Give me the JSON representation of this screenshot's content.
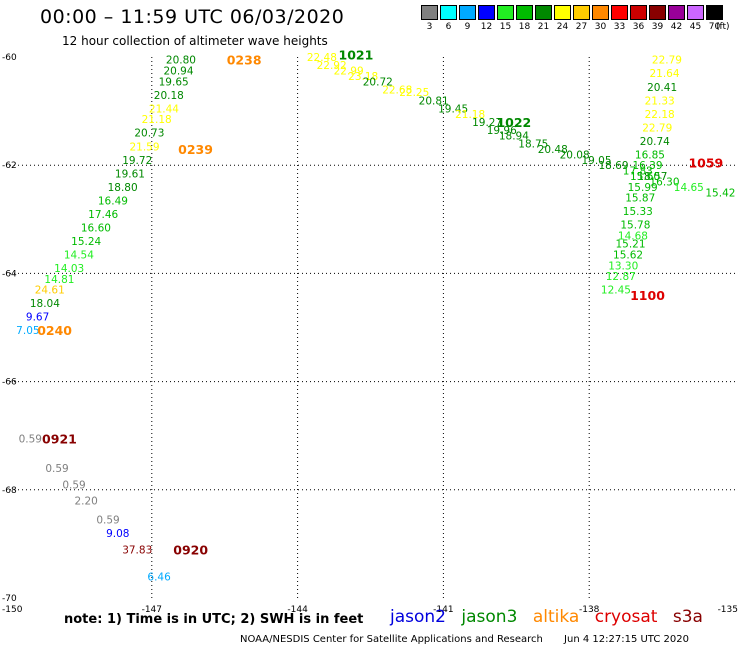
{
  "chart_data": {
    "type": "scatter",
    "title": "00:00 – 11:59 UTC 06/03/2020",
    "subtitle": "12 hour collection of altimeter wave heights",
    "legend_unit": "(ft)",
    "note": "note:  1) Time is in UTC;  2) SWH is in feet",
    "credit": "NOAA/NESDIS Center for Satellite Applications and Research",
    "generated": "Jun  4 12:27:15 UTC 2020",
    "xlim": [
      -150,
      -135
    ],
    "ylim": [
      -70,
      -60
    ],
    "x_ticks": [
      -150,
      -147,
      -144,
      -141,
      -138,
      -135
    ],
    "y_ticks": [
      -60,
      -62,
      -64,
      -66,
      -68,
      -70
    ],
    "grid": true,
    "color_scale": [
      {
        "label": "3",
        "color": "#808080"
      },
      {
        "label": "6",
        "color": "#00ffff"
      },
      {
        "label": "9",
        "color": "#00aaff"
      },
      {
        "label": "12",
        "color": "#0000ff"
      },
      {
        "label": "15",
        "color": "#22ee22"
      },
      {
        "label": "18",
        "color": "#00bb00"
      },
      {
        "label": "21",
        "color": "#008800"
      },
      {
        "label": "24",
        "color": "#ffff00"
      },
      {
        "label": "27",
        "color": "#ffcc00"
      },
      {
        "label": "30",
        "color": "#ff8800"
      },
      {
        "label": "33",
        "color": "#ff0000"
      },
      {
        "label": "36",
        "color": "#cc0000"
      },
      {
        "label": "39",
        "color": "#880000"
      },
      {
        "label": "42",
        "color": "#990099"
      },
      {
        "label": "45",
        "color": "#cc66ff"
      },
      {
        "label": "70",
        "color": "#000000"
      }
    ],
    "satellites": [
      {
        "name": "jason2",
        "color": "#0000dd"
      },
      {
        "name": "jason3",
        "color": "#008800"
      },
      {
        "name": "altika",
        "color": "#ff8800"
      },
      {
        "name": "cryosat",
        "color": "#dd0000"
      },
      {
        "name": "s3a",
        "color": "#880000"
      }
    ],
    "time_labels": [
      {
        "text": "0238",
        "lon": -145.1,
        "lat": -60.05,
        "color": "#ff8800"
      },
      {
        "text": "0239",
        "lon": -146.1,
        "lat": -61.7,
        "color": "#ff8800"
      },
      {
        "text": "0240",
        "lon": -149.0,
        "lat": -65.05,
        "color": "#ff8800"
      },
      {
        "text": "1021",
        "lon": -142.8,
        "lat": -59.95,
        "color": "#008800"
      },
      {
        "text": "1022",
        "lon": -139.55,
        "lat": -61.2,
        "color": "#008800"
      },
      {
        "text": "1059",
        "lon": -135.6,
        "lat": -61.95,
        "color": "#dd0000"
      },
      {
        "text": "1100",
        "lon": -136.8,
        "lat": -64.4,
        "color": "#dd0000"
      },
      {
        "text": "0921",
        "lon": -148.9,
        "lat": -67.05,
        "color": "#880000"
      },
      {
        "text": "0920",
        "lon": -146.2,
        "lat": -69.1,
        "color": "#880000"
      }
    ],
    "points": [
      {
        "lon": -146.4,
        "lat": -60.05,
        "swh": "20.80"
      },
      {
        "lon": -146.45,
        "lat": -60.25,
        "swh": "20.94"
      },
      {
        "lon": -146.55,
        "lat": -60.45,
        "swh": "19.65"
      },
      {
        "lon": -146.65,
        "lat": -60.7,
        "swh": "20.18"
      },
      {
        "lon": -146.75,
        "lat": -60.95,
        "swh": "21.44"
      },
      {
        "lon": -146.9,
        "lat": -61.15,
        "swh": "21.18"
      },
      {
        "lon": -147.05,
        "lat": -61.4,
        "swh": "20.73"
      },
      {
        "lon": -147.15,
        "lat": -61.65,
        "swh": "21.59"
      },
      {
        "lon": -147.3,
        "lat": -61.9,
        "swh": "19.72"
      },
      {
        "lon": -147.45,
        "lat": -62.15,
        "swh": "19.61"
      },
      {
        "lon": -147.6,
        "lat": -62.4,
        "swh": "18.80"
      },
      {
        "lon": -147.8,
        "lat": -62.65,
        "swh": "16.49"
      },
      {
        "lon": -148.0,
        "lat": -62.9,
        "swh": "17.46"
      },
      {
        "lon": -148.15,
        "lat": -63.15,
        "swh": "16.60"
      },
      {
        "lon": -148.35,
        "lat": -63.4,
        "swh": "15.24"
      },
      {
        "lon": -148.5,
        "lat": -63.65,
        "swh": "14.54"
      },
      {
        "lon": -148.7,
        "lat": -63.9,
        "swh": "14.03"
      },
      {
        "lon": -148.9,
        "lat": -64.1,
        "swh": "14.81"
      },
      {
        "lon": -149.1,
        "lat": -64.3,
        "swh": "24.61"
      },
      {
        "lon": -149.2,
        "lat": -64.55,
        "swh": "18.04"
      },
      {
        "lon": -149.35,
        "lat": -64.8,
        "swh": "9.67"
      },
      {
        "lon": -149.55,
        "lat": -65.05,
        "swh": "7.05"
      },
      {
        "lon": -143.5,
        "lat": -60.0,
        "swh": "22.48"
      },
      {
        "lon": -143.3,
        "lat": -60.15,
        "swh": "22.92"
      },
      {
        "lon": -142.95,
        "lat": -60.25,
        "swh": "22.99"
      },
      {
        "lon": -142.65,
        "lat": -60.35,
        "swh": "23.18"
      },
      {
        "lon": -142.35,
        "lat": -60.45,
        "swh": "20.72"
      },
      {
        "lon": -141.95,
        "lat": -60.6,
        "swh": "22.68"
      },
      {
        "lon": -141.6,
        "lat": -60.65,
        "swh": "22.25"
      },
      {
        "lon": -141.2,
        "lat": -60.8,
        "swh": "20.81"
      },
      {
        "lon": -140.8,
        "lat": -60.95,
        "swh": "19.45"
      },
      {
        "lon": -140.45,
        "lat": -61.05,
        "swh": "21.18"
      },
      {
        "lon": -140.1,
        "lat": -61.2,
        "swh": "19.27"
      },
      {
        "lon": -139.8,
        "lat": -61.35,
        "swh": "19.96"
      },
      {
        "lon": -139.55,
        "lat": -61.45,
        "swh": "18.94"
      },
      {
        "lon": -139.15,
        "lat": -61.6,
        "swh": "18.75"
      },
      {
        "lon": -138.75,
        "lat": -61.7,
        "swh": "20.48"
      },
      {
        "lon": -138.3,
        "lat": -61.8,
        "swh": "20.08"
      },
      {
        "lon": -137.85,
        "lat": -61.9,
        "swh": "19.05"
      },
      {
        "lon": -137.5,
        "lat": -62.0,
        "swh": "18.69"
      },
      {
        "lon": -137.0,
        "lat": -62.1,
        "swh": "17.83"
      },
      {
        "lon": -136.7,
        "lat": -62.2,
        "swh": "18.57"
      },
      {
        "lon": -136.45,
        "lat": -62.3,
        "swh": "16.30"
      },
      {
        "lon": -135.95,
        "lat": -62.4,
        "swh": "14.65"
      },
      {
        "lon": -135.3,
        "lat": -62.5,
        "swh": "15.42"
      },
      {
        "lon": -136.4,
        "lat": -60.05,
        "swh": "22.79"
      },
      {
        "lon": -136.45,
        "lat": -60.3,
        "swh": "21.64"
      },
      {
        "lon": -136.5,
        "lat": -60.55,
        "swh": "20.41"
      },
      {
        "lon": -136.55,
        "lat": -60.8,
        "swh": "21.33"
      },
      {
        "lon": -136.55,
        "lat": -61.05,
        "swh": "22.18"
      },
      {
        "lon": -136.6,
        "lat": -61.3,
        "swh": "22.79"
      },
      {
        "lon": -136.65,
        "lat": -61.55,
        "swh": "20.74"
      },
      {
        "lon": -136.75,
        "lat": -61.8,
        "swh": "16.85"
      },
      {
        "lon": -136.8,
        "lat": -62.0,
        "swh": "16.39"
      },
      {
        "lon": -136.85,
        "lat": -62.2,
        "swh": "15.60"
      },
      {
        "lon": -136.9,
        "lat": -62.4,
        "swh": "15.99"
      },
      {
        "lon": -136.95,
        "lat": -62.6,
        "swh": "15.87"
      },
      {
        "lon": -137.0,
        "lat": -62.85,
        "swh": "15.33"
      },
      {
        "lon": -137.05,
        "lat": -63.1,
        "swh": "15.78"
      },
      {
        "lon": -137.1,
        "lat": -63.3,
        "swh": "14.68"
      },
      {
        "lon": -137.15,
        "lat": -63.45,
        "swh": "15.21"
      },
      {
        "lon": -137.2,
        "lat": -63.65,
        "swh": "15.62"
      },
      {
        "lon": -137.3,
        "lat": -63.85,
        "swh": "13.30"
      },
      {
        "lon": -137.35,
        "lat": -64.05,
        "swh": "12.87"
      },
      {
        "lon": -137.45,
        "lat": -64.3,
        "swh": "12.45"
      },
      {
        "lon": -149.5,
        "lat": -67.05,
        "swh": "0.59"
      },
      {
        "lon": -148.95,
        "lat": -67.6,
        "swh": "0.59"
      },
      {
        "lon": -148.6,
        "lat": -67.9,
        "swh": "0.59"
      },
      {
        "lon": -148.35,
        "lat": -68.2,
        "swh": "2.20"
      },
      {
        "lon": -147.9,
        "lat": -68.55,
        "swh": "0.59"
      },
      {
        "lon": -147.7,
        "lat": -68.8,
        "swh": "9.08"
      },
      {
        "lon": -147.3,
        "lat": -69.1,
        "swh": "37.83"
      },
      {
        "lon": -146.85,
        "lat": -69.6,
        "swh": "6.46"
      }
    ]
  }
}
